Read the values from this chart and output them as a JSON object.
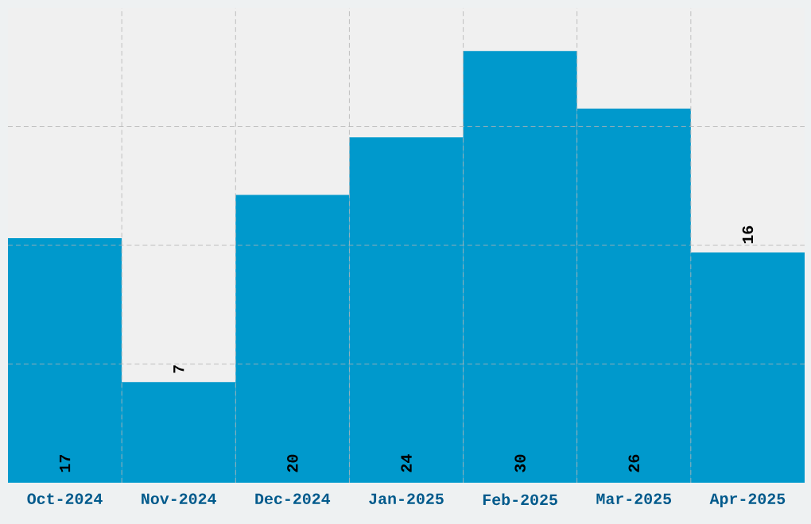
{
  "chart_data": {
    "type": "bar",
    "categories": [
      "Oct-2024",
      "Nov-2024",
      "Dec-2024",
      "Jan-2025",
      "Feb-2025",
      "Mar-2025",
      "Apr-2025"
    ],
    "values": [
      17,
      7,
      20,
      24,
      30,
      26,
      16
    ],
    "color": "#0099cc",
    "ylim": [
      0,
      33
    ],
    "yticks": [
      {
        "value": 8.25,
        "label": null
      },
      {
        "value": 16.5,
        "label": null
      },
      {
        "value": 24.75,
        "label": null
      }
    ],
    "grid": true,
    "data_labels": true,
    "tick_labels": "x"
  }
}
